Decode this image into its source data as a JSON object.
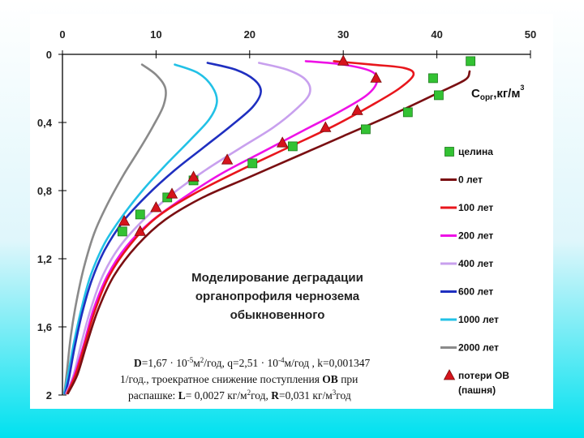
{
  "chart_data": {
    "type": "line",
    "x_axis": {
      "position": "top",
      "range": [
        0,
        50
      ],
      "ticks": [
        0,
        10,
        20,
        30,
        40,
        50
      ],
      "tick_labels": [
        "0",
        "10",
        "20",
        "30",
        "40",
        "50"
      ],
      "label_parts": [
        "C",
        "орг",
        ",кг/м",
        "3"
      ]
    },
    "y_axis": {
      "direction": "downward",
      "range": [
        0,
        2
      ],
      "ticks": [
        0,
        0.4,
        0.8,
        1.2,
        1.6,
        2
      ],
      "tick_labels": [
        "0",
        "0,4",
        "0,8",
        "1,2",
        "1,6",
        "2"
      ]
    },
    "grid": false,
    "series": [
      {
        "name": "0 лет",
        "color": "#7a0f12",
        "points": [
          [
            43.5,
            0.1
          ],
          [
            43.0,
            0.15
          ],
          [
            40.0,
            0.23
          ],
          [
            35.0,
            0.36
          ],
          [
            30.0,
            0.48
          ],
          [
            25.0,
            0.6
          ],
          [
            20.0,
            0.72
          ],
          [
            15.0,
            0.84
          ],
          [
            11.0,
            0.97
          ],
          [
            8.0,
            1.12
          ],
          [
            5.5,
            1.3
          ],
          [
            3.8,
            1.5
          ],
          [
            2.6,
            1.7
          ],
          [
            1.6,
            1.88
          ],
          [
            0.6,
            1.99
          ]
        ]
      },
      {
        "name": "100 лет",
        "color": "#e8161c",
        "points": [
          [
            29.0,
            0.04
          ],
          [
            33.0,
            0.06
          ],
          [
            36.5,
            0.08
          ],
          [
            37.5,
            0.12
          ],
          [
            36.0,
            0.2
          ],
          [
            33.0,
            0.3
          ],
          [
            29.0,
            0.42
          ],
          [
            24.0,
            0.55
          ],
          [
            19.0,
            0.68
          ],
          [
            14.0,
            0.82
          ],
          [
            10.0,
            0.96
          ],
          [
            7.2,
            1.12
          ],
          [
            5.0,
            1.3
          ],
          [
            3.5,
            1.5
          ],
          [
            2.4,
            1.7
          ],
          [
            1.4,
            1.88
          ],
          [
            0.5,
            1.99
          ]
        ]
      },
      {
        "name": "200 лет",
        "color": "#ee12e6",
        "points": [
          [
            26.0,
            0.04
          ],
          [
            30.0,
            0.06
          ],
          [
            33.0,
            0.1
          ],
          [
            33.6,
            0.16
          ],
          [
            32.5,
            0.24
          ],
          [
            29.5,
            0.34
          ],
          [
            26.0,
            0.44
          ],
          [
            21.5,
            0.57
          ],
          [
            17.0,
            0.7
          ],
          [
            13.0,
            0.84
          ],
          [
            9.5,
            0.98
          ],
          [
            6.8,
            1.13
          ],
          [
            4.8,
            1.3
          ],
          [
            3.3,
            1.5
          ],
          [
            2.3,
            1.7
          ],
          [
            1.3,
            1.88
          ],
          [
            0.5,
            1.99
          ]
        ]
      },
      {
        "name": "400 лет",
        "color": "#c8a0ee",
        "points": [
          [
            21.0,
            0.05
          ],
          [
            24.0,
            0.09
          ],
          [
            26.0,
            0.15
          ],
          [
            26.4,
            0.23
          ],
          [
            25.0,
            0.32
          ],
          [
            22.5,
            0.43
          ],
          [
            19.0,
            0.55
          ],
          [
            15.0,
            0.69
          ],
          [
            11.5,
            0.83
          ],
          [
            8.5,
            0.98
          ],
          [
            6.1,
            1.13
          ],
          [
            4.3,
            1.3
          ],
          [
            3.0,
            1.5
          ],
          [
            2.0,
            1.7
          ],
          [
            1.2,
            1.88
          ],
          [
            0.4,
            1.99
          ]
        ]
      },
      {
        "name": "600 лет",
        "color": "#1f2fc0",
        "points": [
          [
            15.5,
            0.05
          ],
          [
            18.5,
            0.09
          ],
          [
            20.5,
            0.15
          ],
          [
            21.2,
            0.22
          ],
          [
            20.3,
            0.31
          ],
          [
            18.0,
            0.42
          ],
          [
            15.0,
            0.55
          ],
          [
            12.0,
            0.68
          ],
          [
            9.0,
            0.83
          ],
          [
            6.5,
            0.98
          ],
          [
            4.5,
            1.15
          ],
          [
            3.1,
            1.33
          ],
          [
            2.1,
            1.52
          ],
          [
            1.3,
            1.72
          ],
          [
            0.7,
            1.9
          ],
          [
            0.3,
            1.99
          ]
        ]
      },
      {
        "name": "1000 лет",
        "color": "#22c1e6",
        "points": [
          [
            12.0,
            0.06
          ],
          [
            14.5,
            0.11
          ],
          [
            16.0,
            0.19
          ],
          [
            16.5,
            0.28
          ],
          [
            15.7,
            0.38
          ],
          [
            13.7,
            0.5
          ],
          [
            11.2,
            0.64
          ],
          [
            8.7,
            0.79
          ],
          [
            6.4,
            0.95
          ],
          [
            4.5,
            1.11
          ],
          [
            3.0,
            1.3
          ],
          [
            2.0,
            1.5
          ],
          [
            1.2,
            1.7
          ],
          [
            0.6,
            1.88
          ],
          [
            0.2,
            1.99
          ]
        ]
      },
      {
        "name": "2000 лет",
        "color": "#8a8a8a",
        "points": [
          [
            8.5,
            0.06
          ],
          [
            10.0,
            0.12
          ],
          [
            11.0,
            0.2
          ],
          [
            10.8,
            0.3
          ],
          [
            9.7,
            0.42
          ],
          [
            8.2,
            0.56
          ],
          [
            6.5,
            0.71
          ],
          [
            4.8,
            0.88
          ],
          [
            3.4,
            1.05
          ],
          [
            2.3,
            1.25
          ],
          [
            1.5,
            1.45
          ],
          [
            0.9,
            1.65
          ],
          [
            0.5,
            1.85
          ],
          [
            0.2,
            1.99
          ]
        ]
      }
    ],
    "markers": [
      {
        "name": "целина",
        "shape": "square",
        "color": "#33c233",
        "points": [
          [
            43.6,
            0.04
          ],
          [
            39.6,
            0.14
          ],
          [
            40.2,
            0.24
          ],
          [
            36.9,
            0.34
          ],
          [
            32.4,
            0.44
          ],
          [
            24.6,
            0.54
          ],
          [
            20.3,
            0.64
          ],
          [
            14.0,
            0.74
          ],
          [
            11.2,
            0.84
          ],
          [
            8.3,
            0.94
          ],
          [
            6.4,
            1.04
          ]
        ]
      },
      {
        "name": "потери ОВ (пашня)",
        "shape": "triangle",
        "color": "#d6141c",
        "points": [
          [
            30.0,
            0.04
          ],
          [
            33.5,
            0.14
          ],
          [
            31.5,
            0.33
          ],
          [
            28.1,
            0.43
          ],
          [
            23.5,
            0.52
          ],
          [
            17.6,
            0.62
          ],
          [
            14.0,
            0.72
          ],
          [
            11.7,
            0.82
          ],
          [
            10.0,
            0.9
          ],
          [
            6.6,
            0.98
          ],
          [
            8.3,
            1.04
          ]
        ]
      }
    ],
    "legend": {
      "placement": "right",
      "entries": [
        "целина",
        "0 лет",
        "100 лет",
        "200 лет",
        "400 лет",
        "600 лет",
        "1000 лет",
        "2000 лет",
        "потери ОВ",
        "(пашня)"
      ]
    },
    "annotations": {
      "caption": [
        "Моделирование деградации",
        "органопрофиля чернозема",
        "обыкновенного"
      ],
      "params_line1_parts": [
        "D",
        "=1,67 · 10",
        "-5",
        "м",
        "2",
        "/год, q=2,51 · 10",
        "-4",
        "м/год , k=0,001347"
      ],
      "params_line2_parts": [
        "1/год., троекратное снижение поступления ",
        "ОВ",
        " при"
      ],
      "params_line3_parts": [
        "распашке: ",
        "L",
        "= 0,0027 кг/м",
        "2",
        "год,  ",
        "R",
        "=0,031 кг/м",
        "3",
        "год"
      ]
    },
    "colors": {
      "axis": "#000000"
    }
  }
}
